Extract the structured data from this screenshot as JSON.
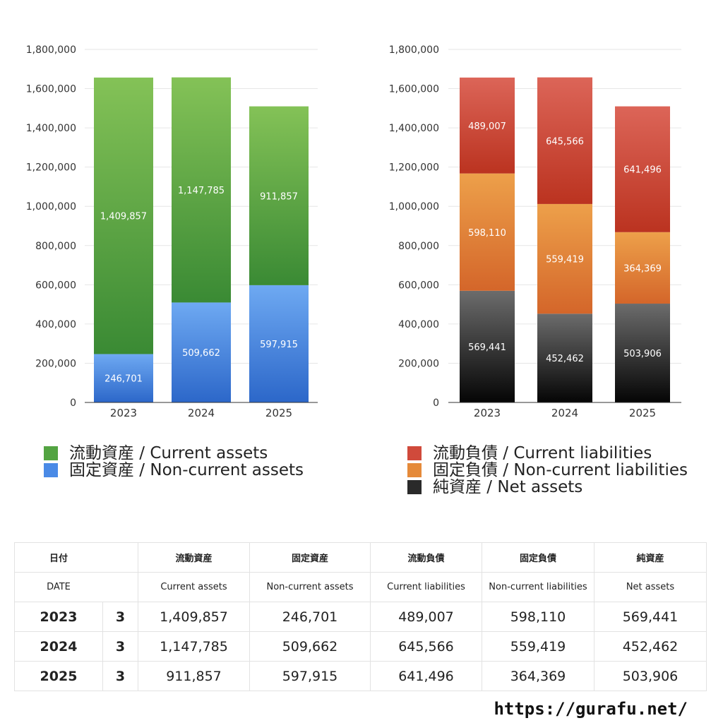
{
  "chart_data": [
    {
      "type": "bar",
      "stacked": true,
      "categories": [
        "2023",
        "2024",
        "2025"
      ],
      "ylim": [
        0,
        1800000
      ],
      "yticks": [
        "0",
        "200,000",
        "400,000",
        "600,000",
        "800,000",
        "1,000,000",
        "1,200,000",
        "1,400,000",
        "1,600,000",
        "1,800,000"
      ],
      "grid": true,
      "legend_position": "bottom",
      "series": [
        {
          "name": "固定資産 / Non-current assets",
          "values": [
            246701,
            509662,
            597915
          ],
          "labels": [
            "246,701",
            "509,662",
            "597,915"
          ],
          "color_top": "#6ea9f2",
          "color_bottom": "#2c67c9"
        },
        {
          "name": "流動資産 / Current assets",
          "values": [
            1409857,
            1147785,
            911857
          ],
          "labels": [
            "1,409,857",
            "1,147,785",
            "911,857"
          ],
          "color_top": "#84c257",
          "color_bottom": "#3a8a34"
        }
      ]
    },
    {
      "type": "bar",
      "stacked": true,
      "categories": [
        "2023",
        "2024",
        "2025"
      ],
      "ylim": [
        0,
        1800000
      ],
      "yticks": [
        "0",
        "200,000",
        "400,000",
        "600,000",
        "800,000",
        "1,000,000",
        "1,200,000",
        "1,400,000",
        "1,600,000",
        "1,800,000"
      ],
      "grid": true,
      "legend_position": "bottom",
      "series": [
        {
          "name": "純資産 / Net assets",
          "values": [
            569441,
            452462,
            503906
          ],
          "labels": [
            "569,441",
            "452,462",
            "503,906"
          ],
          "color_top": "#6c6c6c",
          "color_bottom": "#050505"
        },
        {
          "name": "固定負債 / Non-current liabilities",
          "values": [
            598110,
            559419,
            364369
          ],
          "labels": [
            "598,110",
            "559,419",
            "364,369"
          ],
          "color_top": "#eda04a",
          "color_bottom": "#d4662a"
        },
        {
          "name": "流動負債 / Current liabilities",
          "values": [
            489007,
            645566,
            641496
          ],
          "labels": [
            "489,007",
            "645,566",
            "641,496"
          ],
          "color_top": "#dc6558",
          "color_bottom": "#bb3320"
        }
      ]
    }
  ],
  "legend_left": [
    {
      "label": "流動資産 / Current assets",
      "color": "#53a442"
    },
    {
      "label": "固定資産 / Non-current assets",
      "color": "#4a8ae6"
    }
  ],
  "legend_right": [
    {
      "label": "流動負債 / Current liabilities",
      "color": "#d04a3b"
    },
    {
      "label": "固定負債 / Non-current liabilities",
      "color": "#e58a3a"
    },
    {
      "label": "純資産 / Net assets",
      "color": "#2a2a2a"
    }
  ],
  "table": {
    "header_ja": [
      "日付",
      "",
      "流動資産",
      "固定資産",
      "流動負債",
      "固定負債",
      "純資産"
    ],
    "header_en": [
      "DATE",
      "",
      "Current assets",
      "Non-current assets",
      "Current liabilities",
      "Non-current liabilities",
      "Net assets"
    ],
    "rows": [
      [
        "2023",
        "3",
        "1,409,857",
        "246,701",
        "489,007",
        "598,110",
        "569,441"
      ],
      [
        "2024",
        "3",
        "1,147,785",
        "509,662",
        "645,566",
        "559,419",
        "452,462"
      ],
      [
        "2025",
        "3",
        "911,857",
        "597,915",
        "641,496",
        "364,369",
        "503,906"
      ]
    ]
  },
  "footer_url": "https://gurafu.net/"
}
